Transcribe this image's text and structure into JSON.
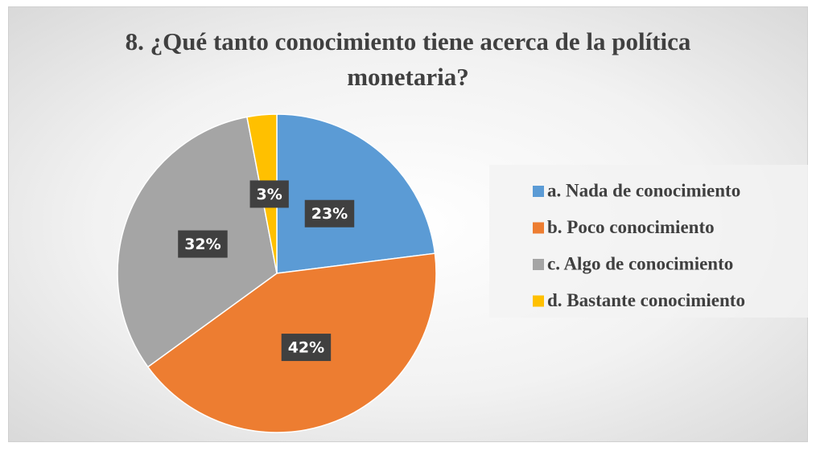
{
  "chart_data": {
    "type": "pie",
    "title": "8. ¿Qué tanto conocimiento tiene acerca de la política monetaria?",
    "categories": [
      "a. Nada de conocimiento",
      "b. Poco conocimiento",
      "c. Algo de conocimiento",
      "d. Bastante conocimiento"
    ],
    "values": [
      23,
      42,
      32,
      3
    ],
    "value_labels": [
      "23%",
      "42%",
      "32%",
      "3%"
    ],
    "colors": [
      "#5b9bd5",
      "#ed7d31",
      "#a5a5a5",
      "#ffc000"
    ],
    "legend": "right"
  }
}
